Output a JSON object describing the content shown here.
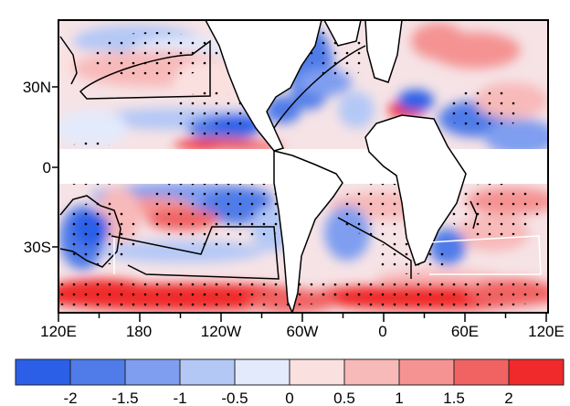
{
  "map": {
    "lat_labels": [
      "30N",
      "0",
      "30S"
    ],
    "lon_labels": [
      "120E",
      "180",
      "120W",
      "60W",
      "0",
      "60E",
      "120E"
    ],
    "colors": {
      "land": "#ffffff",
      "coast": "#000000",
      "missing_band": "#ffffff"
    }
  },
  "colorbar": {
    "labels": [
      "-2",
      "-1.5",
      "-1",
      "-0.5",
      "0",
      "0.5",
      "1",
      "1.5",
      "2"
    ],
    "colors": [
      "#2b5fe8",
      "#4f7ce8",
      "#7f9ef0",
      "#b4c8f6",
      "#e3eafb",
      "#fbe0e0",
      "#f8b9b9",
      "#f59393",
      "#f16363",
      "#f02a2a"
    ]
  }
}
